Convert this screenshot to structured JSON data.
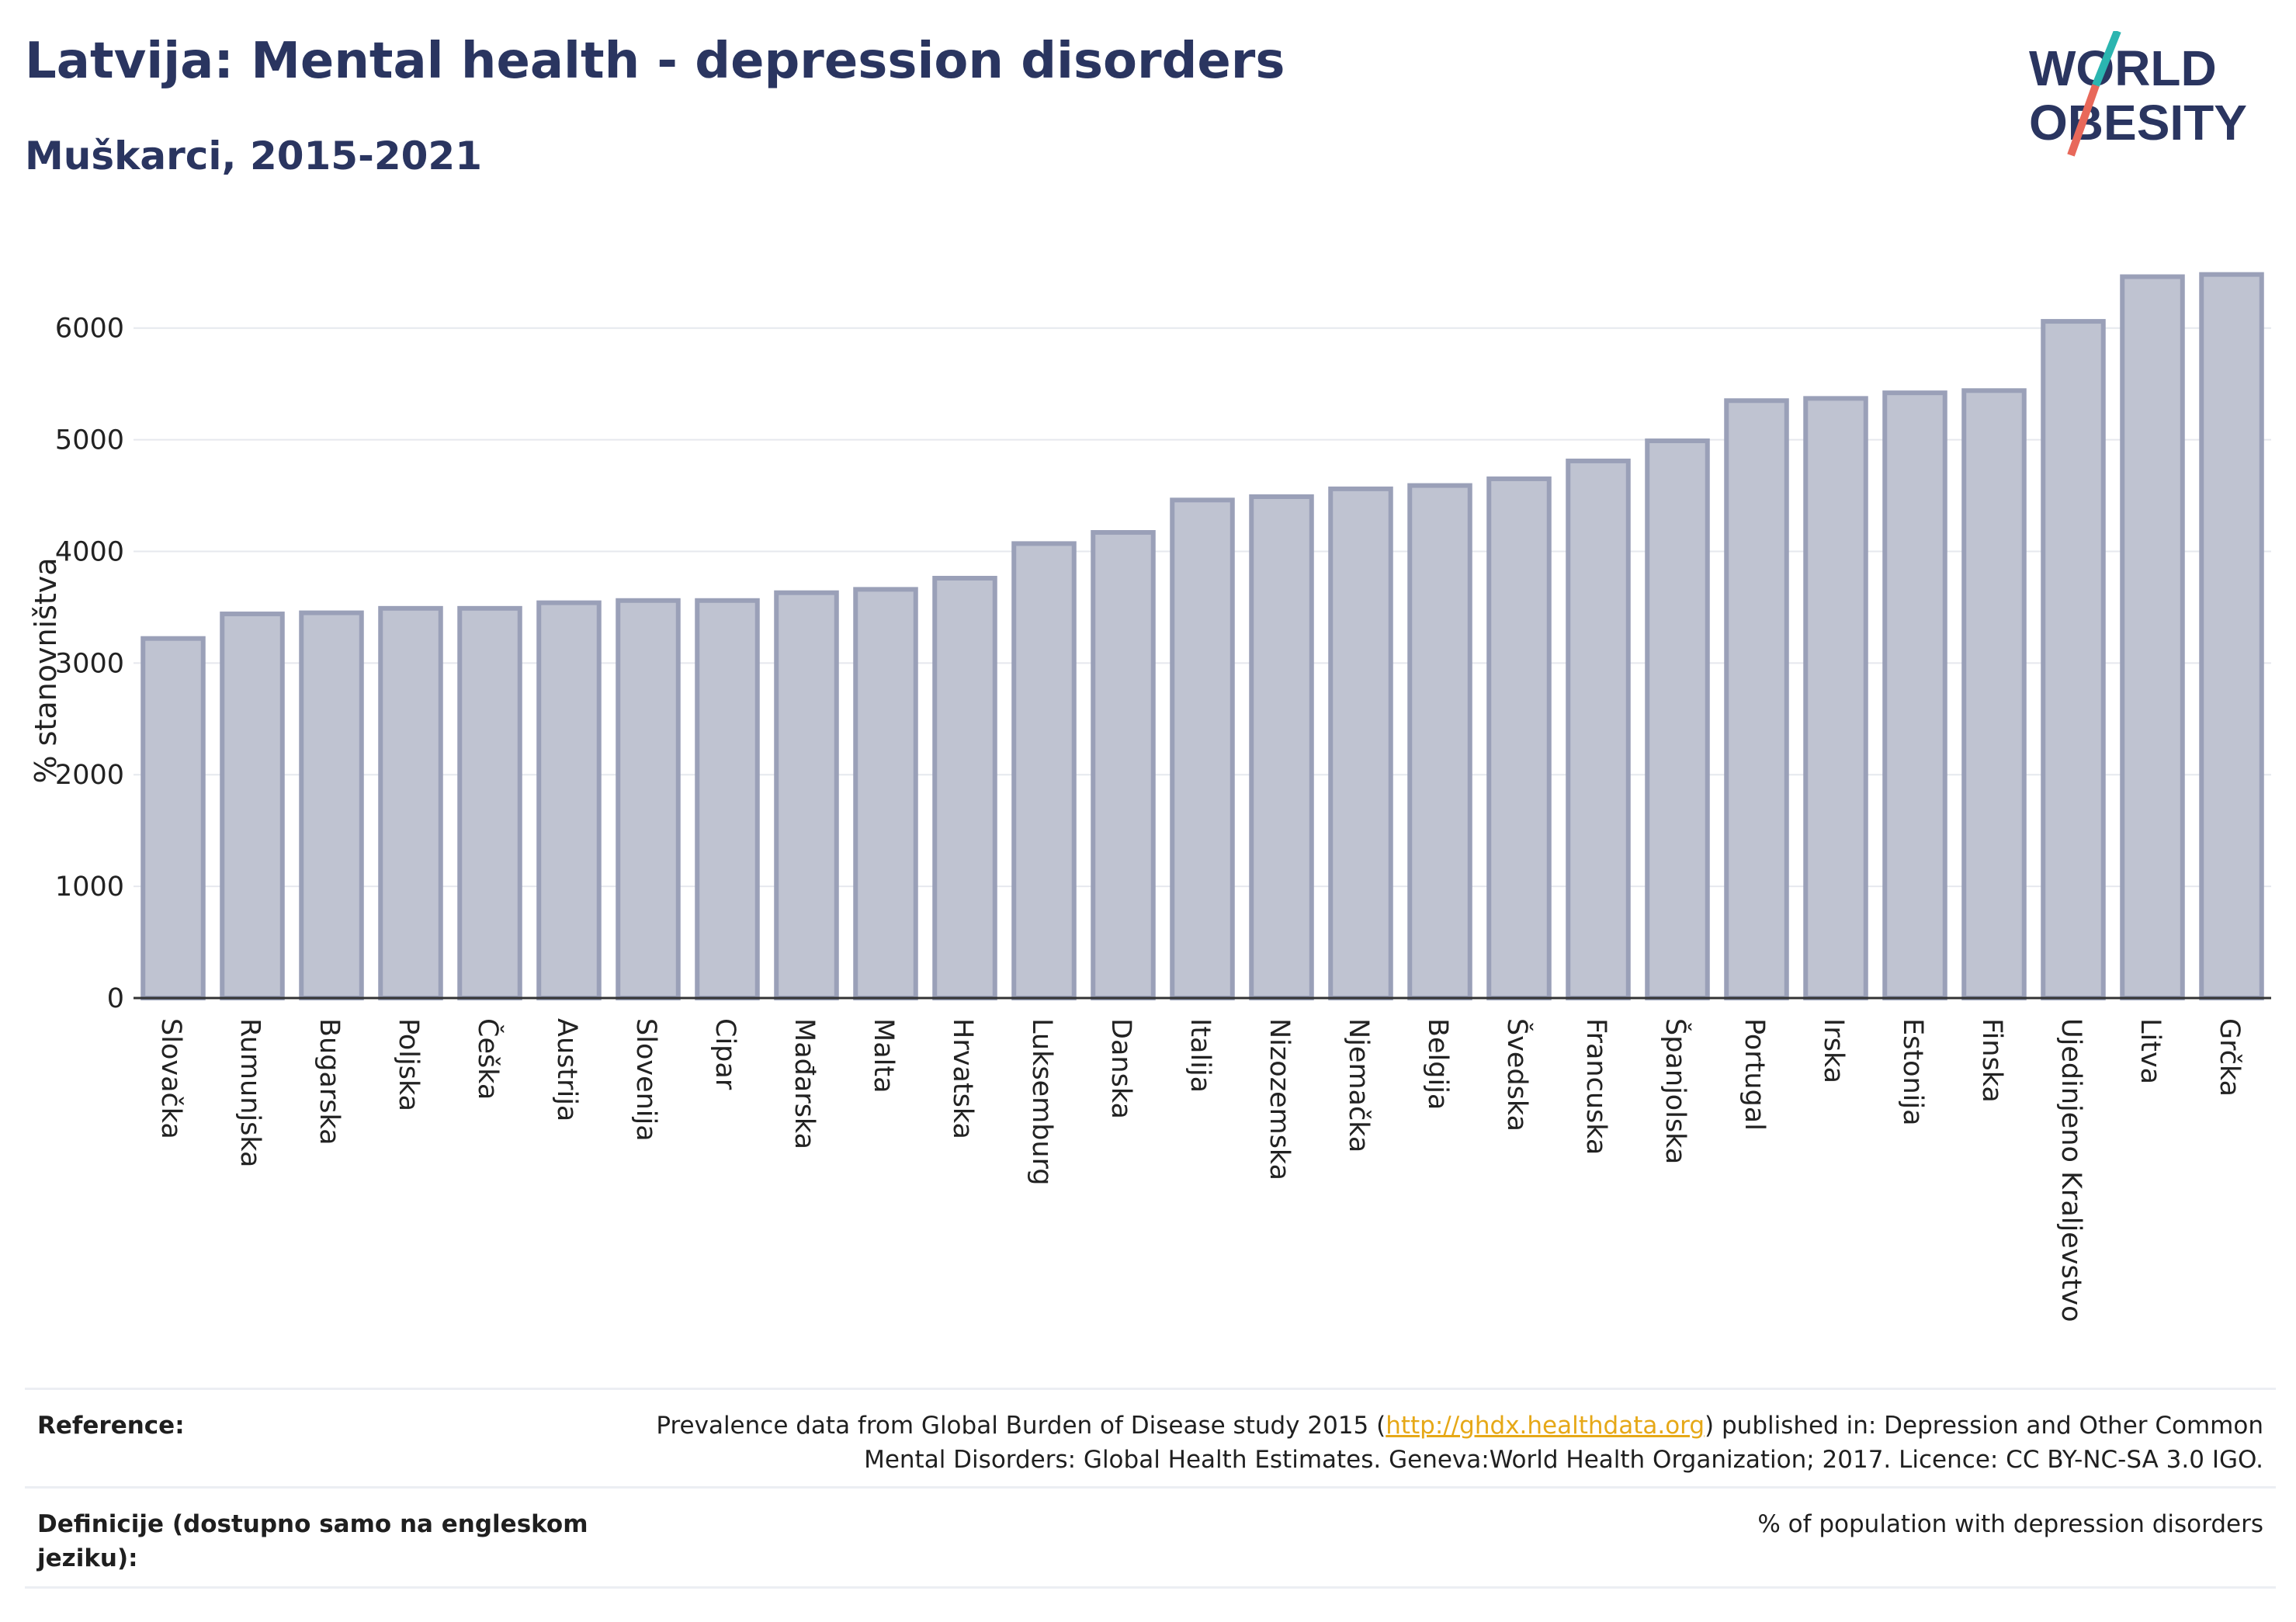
{
  "header": {
    "title": "Latvija: Mental health - depression disorders",
    "subtitle": "Muškarci, 2015-2021"
  },
  "logo": {
    "line1": "WORLD",
    "line2": "OBESITY",
    "colors": {
      "text": "#2a3560",
      "slash_teal": "#2bb5b0",
      "slash_red": "#e8685a"
    }
  },
  "chart_data": {
    "type": "bar",
    "ylabel": "% stanovništva",
    "ylim": [
      0,
      6700
    ],
    "yticks": [
      0,
      1000,
      2000,
      3000,
      4000,
      5000,
      6000
    ],
    "grid": true,
    "bar_color": "#bfc3d1",
    "bar_edge_color": "#9aa0b8",
    "categories": [
      "Slovačka",
      "Rumunjska",
      "Bugarska",
      "Poljska",
      "Češka",
      "Austrija",
      "Slovenija",
      "Cipar",
      "Mađarska",
      "Malta",
      "Hrvatska",
      "Luksemburg",
      "Danska",
      "Italija",
      "Nizozemska",
      "Njemačka",
      "Belgija",
      "Švedska",
      "Francuska",
      "Španjolska",
      "Portugal",
      "Irska",
      "Estonija",
      "Finska",
      "Ujedinjeno Kraljevstvo",
      "Litva",
      "Grčka"
    ],
    "values": [
      3220,
      3440,
      3450,
      3490,
      3490,
      3540,
      3560,
      3560,
      3630,
      3660,
      3760,
      4070,
      4170,
      4460,
      4490,
      4560,
      4590,
      4650,
      4810,
      4990,
      5350,
      5370,
      5420,
      5440,
      6060,
      6460,
      6480
    ]
  },
  "reference": {
    "label": "Reference:",
    "text_before": "Prevalence data from Global Burden of Disease study 2015 (",
    "link": "http://ghdx.healthdata.org",
    "text_after": ") published in: Depression and Other Common Mental Disorders: Global Health Estimates. Geneva:World Health Organization; 2017. Licence: CC BY-NC-SA 3.0 IGO."
  },
  "definition": {
    "label": "Definicije (dostupno samo na engleskom jeziku):",
    "text": "% of population with depression disorders"
  }
}
